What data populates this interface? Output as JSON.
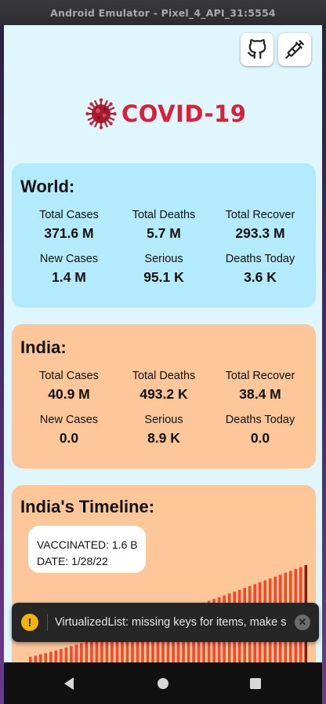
{
  "window": {
    "title": "Android Emulator - Pixel_4_API_31:5554"
  },
  "header": {
    "logo_text": "COVID-19",
    "github_icon": "github-icon",
    "vaccine_icon": "syringe-icon"
  },
  "world": {
    "title": "World:",
    "stats": [
      {
        "label": "Total Cases",
        "value": "371.6 M"
      },
      {
        "label": "Total Deaths",
        "value": "5.7 M"
      },
      {
        "label": "Total Recover",
        "value": "293.3 M"
      },
      {
        "label": "New Cases",
        "value": "1.4 M"
      },
      {
        "label": "Serious",
        "value": "95.1 K"
      },
      {
        "label": "Deaths Today",
        "value": "3.6 K"
      }
    ]
  },
  "india": {
    "title": "India:",
    "stats": [
      {
        "label": "Total Cases",
        "value": "40.9 M"
      },
      {
        "label": "Total Deaths",
        "value": "493.2 K"
      },
      {
        "label": "Total Recover",
        "value": "38.4 M"
      },
      {
        "label": "New Cases",
        "value": "0.0"
      },
      {
        "label": "Serious",
        "value": "8.9 K"
      },
      {
        "label": "Deaths Today",
        "value": "0.0"
      }
    ]
  },
  "timeline": {
    "title": "India's Timeline:",
    "tooltip": {
      "vaccinated": "VACCINATED: 1.6 B",
      "date": "DATE: 1/28/22"
    },
    "bar_color": "#f2492a",
    "highlight_color": "#8b1a0a"
  },
  "toast": {
    "message": "VirtualizedList: missing keys for items, make sure to specify a key or id property on each item or provide a custom keyExtractor.",
    "warn_symbol": "!",
    "close_symbol": "✕"
  },
  "nav": {
    "back": "back-icon",
    "home": "home-icon",
    "recent": "recents-icon"
  }
}
